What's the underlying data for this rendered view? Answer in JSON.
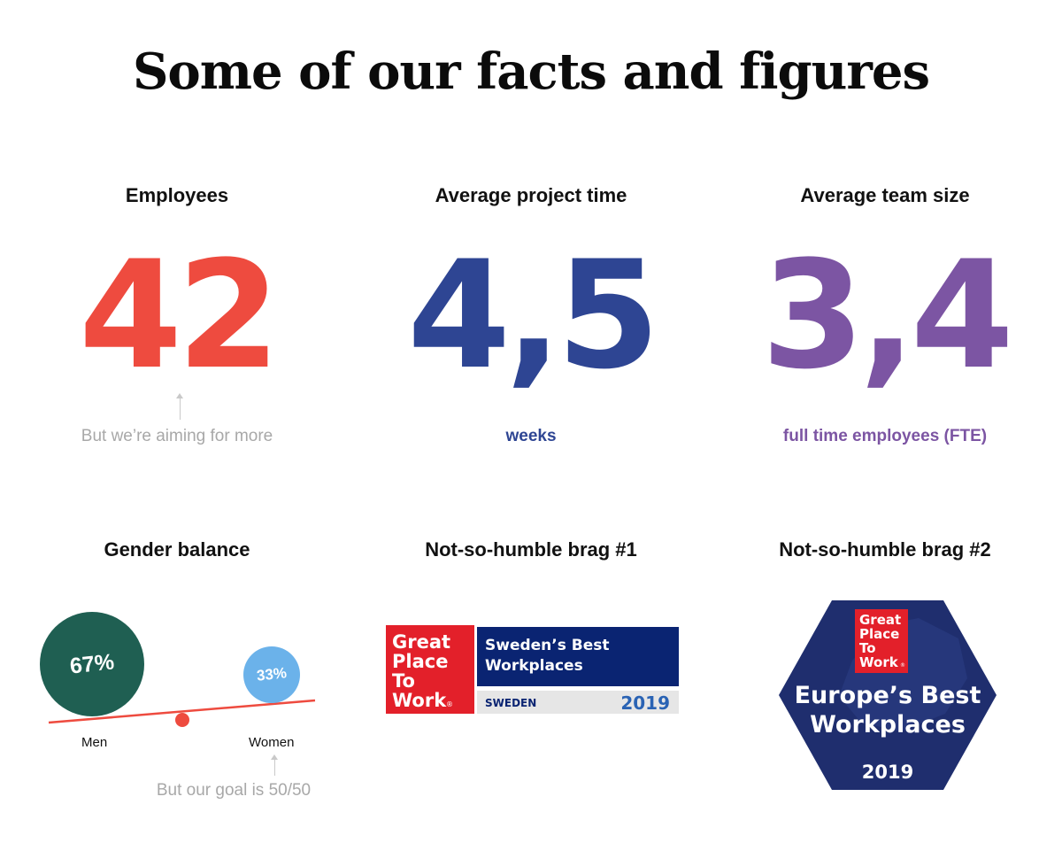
{
  "title": "Some of our facts and figures",
  "colors": {
    "red": "#ee4b3f",
    "blue": "#2e4593",
    "purple": "#7c55a3",
    "green": "#1f5f52",
    "light_blue": "#6bb2ea",
    "gptw_red": "#e3202a",
    "gptw_navy": "#0a2472"
  },
  "stats": [
    {
      "label": "Employees",
      "value": "42",
      "note": "But we’re aiming for more"
    },
    {
      "label": "Average project time",
      "value": "4,5",
      "note": "weeks"
    },
    {
      "label": "Average team size",
      "value": "3,4",
      "note": "full time employees (FTE)"
    }
  ],
  "gender": {
    "label": "Gender balance",
    "men_percent": "67%",
    "women_percent": "33%",
    "men_label": "Men",
    "women_label": "Women",
    "note": "But our goal is 50/50"
  },
  "brag1": {
    "label": "Not-so-humble brag #1",
    "logo_lines": [
      "Great",
      "Place",
      "To",
      "Work"
    ],
    "logo_mark": "®",
    "headline_line1": "Sweden’s Best",
    "headline_line2": "Workplaces",
    "country": "SWEDEN",
    "year": "2019"
  },
  "brag2": {
    "label": "Not-so-humble brag #2",
    "logo_lines": [
      "Great",
      "Place",
      "To",
      "Work"
    ],
    "logo_mark": "®",
    "headline_line1": "Europe’s Best",
    "headline_line2": "Workplaces",
    "year": "2019"
  }
}
